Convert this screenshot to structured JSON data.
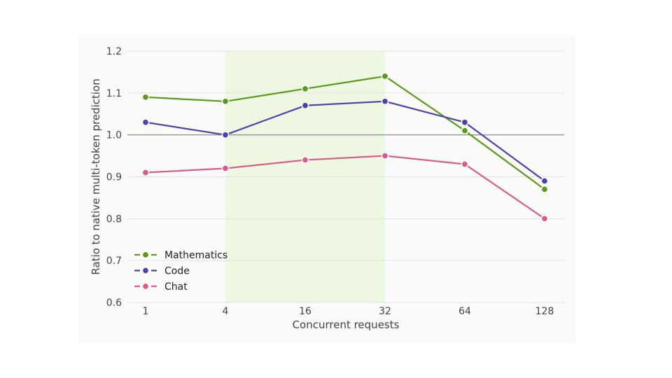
{
  "chart_data": {
    "type": "line",
    "categories": [
      "1",
      "4",
      "16",
      "32",
      "64",
      "128"
    ],
    "series": [
      {
        "name": "Mathematics",
        "color": "#5a9a1a",
        "values": [
          1.09,
          1.08,
          1.11,
          1.14,
          1.01,
          0.87
        ]
      },
      {
        "name": "Code",
        "color": "#4f40ad",
        "values": [
          1.03,
          1.0,
          1.07,
          1.08,
          1.03,
          0.89
        ]
      },
      {
        "name": "Chat",
        "color": "#d95b8c",
        "values": [
          0.91,
          0.92,
          0.94,
          0.95,
          0.93,
          0.8
        ]
      }
    ],
    "xlabel": "Concurrent requests",
    "ylabel": "Ratio to native multi-token prediction",
    "ylim": [
      0.6,
      1.2
    ],
    "yticks": [
      "0.6",
      "0.7",
      "0.8",
      "0.9",
      "1.0",
      "1.1",
      "1.2"
    ],
    "reference_line": 1.0,
    "highlight_range": [
      "4",
      "32"
    ],
    "highlight_color": "#eef7e2",
    "grid": true,
    "legend_position": "lower-left"
  }
}
